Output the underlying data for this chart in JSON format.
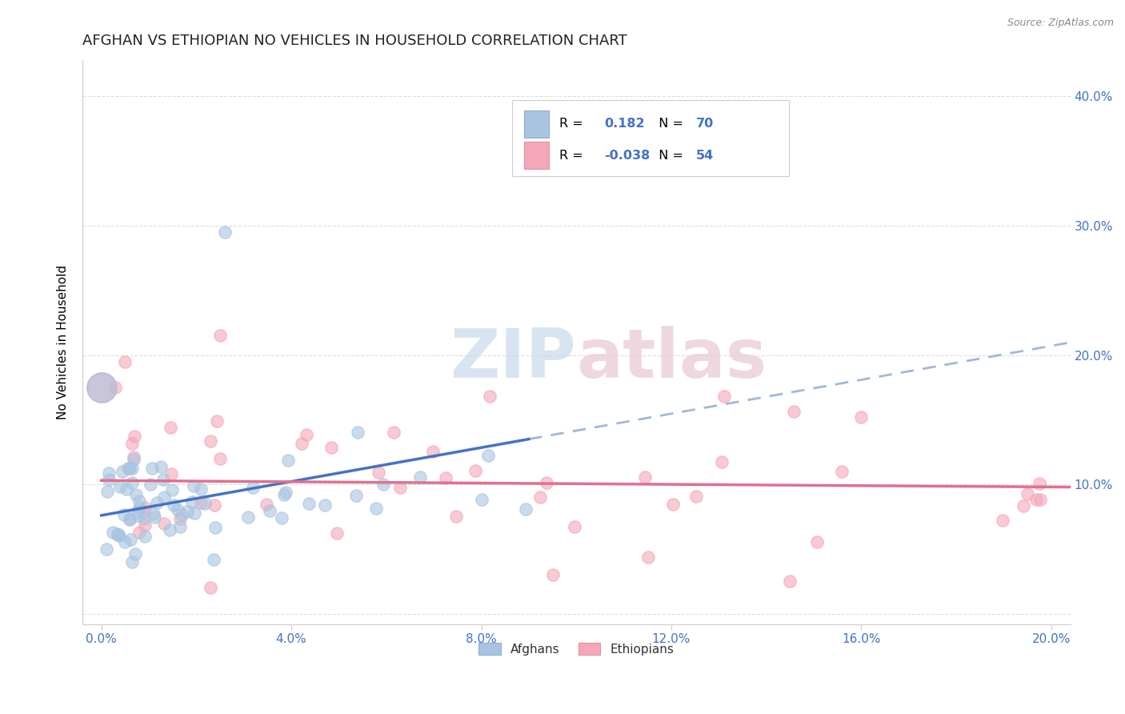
{
  "title": "AFGHAN VS ETHIOPIAN NO VEHICLES IN HOUSEHOLD CORRELATION CHART",
  "source": "Source: ZipAtlas.com",
  "ylabel": "No Vehicles in Household",
  "background_color": "#ffffff",
  "grid_color": "#dddddd",
  "afghan_color": "#a8c4e0",
  "ethiopian_color": "#f4a7b8",
  "afghan_line_color": "#4472c4",
  "ethiopian_line_color": "#e07090",
  "dashed_line_color": "#a0b8d8",
  "tick_color": "#4472c4",
  "afghan_R": 0.182,
  "afghan_N": 70,
  "ethiopian_R": -0.038,
  "ethiopian_N": 54,
  "xlim": [
    0.0,
    0.2
  ],
  "ylim": [
    0.0,
    0.42
  ],
  "x_ticks": [
    0.0,
    0.04,
    0.08,
    0.12,
    0.16,
    0.2
  ],
  "y_ticks": [
    0.0,
    0.1,
    0.2,
    0.3,
    0.4
  ],
  "y_tick_labels": [
    "",
    "10.0%",
    "20.0%",
    "30.0%",
    "40.0%"
  ]
}
